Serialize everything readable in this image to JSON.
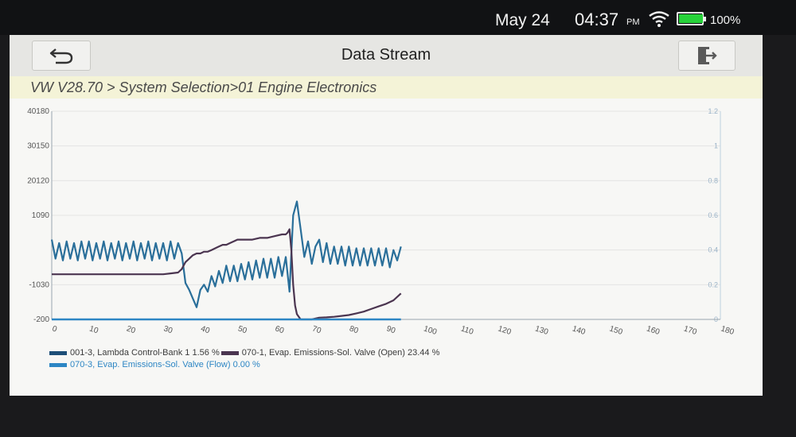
{
  "status_bar": {
    "date": "May 24",
    "time": "04:37",
    "ampm": "PM",
    "battery_text": "100%",
    "battery_level": 1.0,
    "wifi_icon": "wifi-icon",
    "battery_icon": "battery-icon"
  },
  "header": {
    "title": "Data Stream",
    "back_icon": "back-arrow-icon",
    "exit_icon": "exit-icon"
  },
  "breadcrumb": "VW V28.70 > System Selection>01 Engine Electronics",
  "chart_data": {
    "type": "line",
    "x_ticks": [
      "0",
      "10",
      "20",
      "30",
      "40",
      "50",
      "60",
      "70",
      "80",
      "90",
      "100",
      "110",
      "120",
      "130",
      "140",
      "150",
      "160",
      "170",
      "180"
    ],
    "xlim": [
      0,
      180
    ],
    "y_left_ticks": [
      "40180",
      "30150",
      "20120",
      "1090",
      "",
      "-1030",
      "-200"
    ],
    "y_right_ticks": [
      "1.2",
      "1",
      "0.8",
      "0.6",
      "0.4",
      "0.2",
      "0"
    ],
    "y_right_lim": [
      0,
      1.2
    ],
    "grid": true,
    "legend": [
      {
        "name": "001-3, Lambda Control-Bank 1 1.56 %",
        "color": "#1e4f78"
      },
      {
        "name": "070-1, Evap. Emissions-Sol. Valve (Open) 23.44 %",
        "color": "#4b3550"
      },
      {
        "name": "070-3, Evap. Emissions-Sol. Valve (Flow) 0.00 %",
        "color": "#2d86c4"
      }
    ],
    "series": [
      {
        "name": "001-3, Lambda Control-Bank 1 1.56 %",
        "color": "#2a6f9a",
        "x": [
          0,
          1,
          2,
          3,
          4,
          5,
          6,
          7,
          8,
          9,
          10,
          11,
          12,
          13,
          14,
          15,
          16,
          17,
          18,
          19,
          20,
          21,
          22,
          23,
          24,
          25,
          26,
          27,
          28,
          29,
          30,
          31,
          32,
          33,
          34,
          35,
          36,
          37,
          38,
          39,
          40,
          41,
          42,
          43,
          44,
          45,
          46,
          47,
          48,
          49,
          50,
          51,
          52,
          53,
          54,
          55,
          56,
          57,
          58,
          59,
          60,
          61,
          62,
          63,
          64,
          65,
          66,
          67,
          68,
          69,
          70,
          71,
          72,
          73,
          74,
          75,
          76,
          77,
          78,
          79,
          80,
          81,
          82,
          83,
          84,
          85,
          86,
          87,
          88,
          89,
          90,
          91,
          92,
          93,
          94
        ],
        "y": [
          0.46,
          0.35,
          0.44,
          0.34,
          0.45,
          0.35,
          0.44,
          0.34,
          0.45,
          0.35,
          0.45,
          0.34,
          0.44,
          0.35,
          0.45,
          0.34,
          0.44,
          0.35,
          0.45,
          0.34,
          0.44,
          0.35,
          0.45,
          0.34,
          0.44,
          0.35,
          0.45,
          0.34,
          0.44,
          0.35,
          0.44,
          0.34,
          0.45,
          0.35,
          0.44,
          0.38,
          0.21,
          0.17,
          0.12,
          0.07,
          0.17,
          0.2,
          0.16,
          0.25,
          0.19,
          0.28,
          0.21,
          0.31,
          0.22,
          0.31,
          0.22,
          0.32,
          0.23,
          0.33,
          0.23,
          0.34,
          0.24,
          0.35,
          0.24,
          0.35,
          0.24,
          0.36,
          0.25,
          0.36,
          0.16,
          0.6,
          0.68,
          0.52,
          0.36,
          0.45,
          0.32,
          0.42,
          0.46,
          0.33,
          0.44,
          0.32,
          0.42,
          0.32,
          0.42,
          0.31,
          0.42,
          0.31,
          0.41,
          0.31,
          0.41,
          0.31,
          0.41,
          0.31,
          0.41,
          0.31,
          0.41,
          0.3,
          0.4,
          0.34,
          0.42
        ]
      },
      {
        "name": "070-1, Evap. Emissions-Sol. Valve (Open) 23.44 %",
        "color": "#4b3550",
        "x": [
          0,
          5,
          10,
          15,
          20,
          25,
          30,
          32,
          34,
          35,
          36,
          37,
          38,
          39,
          40,
          41,
          42,
          43,
          44,
          45,
          46,
          47,
          48,
          49,
          50,
          52,
          54,
          56,
          58,
          60,
          62,
          63,
          63.5,
          64,
          64.5,
          65,
          65.5,
          66,
          67,
          68,
          69,
          70,
          72,
          74,
          76,
          78,
          80,
          82,
          84,
          86,
          88,
          90,
          92,
          94
        ],
        "y": [
          0.26,
          0.26,
          0.26,
          0.26,
          0.26,
          0.26,
          0.26,
          0.265,
          0.27,
          0.29,
          0.33,
          0.35,
          0.37,
          0.38,
          0.38,
          0.39,
          0.39,
          0.4,
          0.41,
          0.42,
          0.43,
          0.43,
          0.44,
          0.45,
          0.46,
          0.46,
          0.46,
          0.47,
          0.47,
          0.48,
          0.49,
          0.49,
          0.5,
          0.52,
          0.4,
          0.2,
          0.08,
          0.03,
          0.0,
          0.0,
          0.0,
          0.0,
          0.01,
          0.012,
          0.015,
          0.02,
          0.025,
          0.035,
          0.045,
          0.06,
          0.075,
          0.09,
          0.11,
          0.15
        ]
      },
      {
        "name": "070-3, Evap. Emissions-Sol. Valve (Flow) 0.00 %",
        "color": "#2d86c4",
        "x": [
          0,
          20,
          40,
          60,
          80,
          94
        ],
        "y": [
          0,
          0,
          0,
          0,
          0,
          0
        ]
      }
    ]
  }
}
